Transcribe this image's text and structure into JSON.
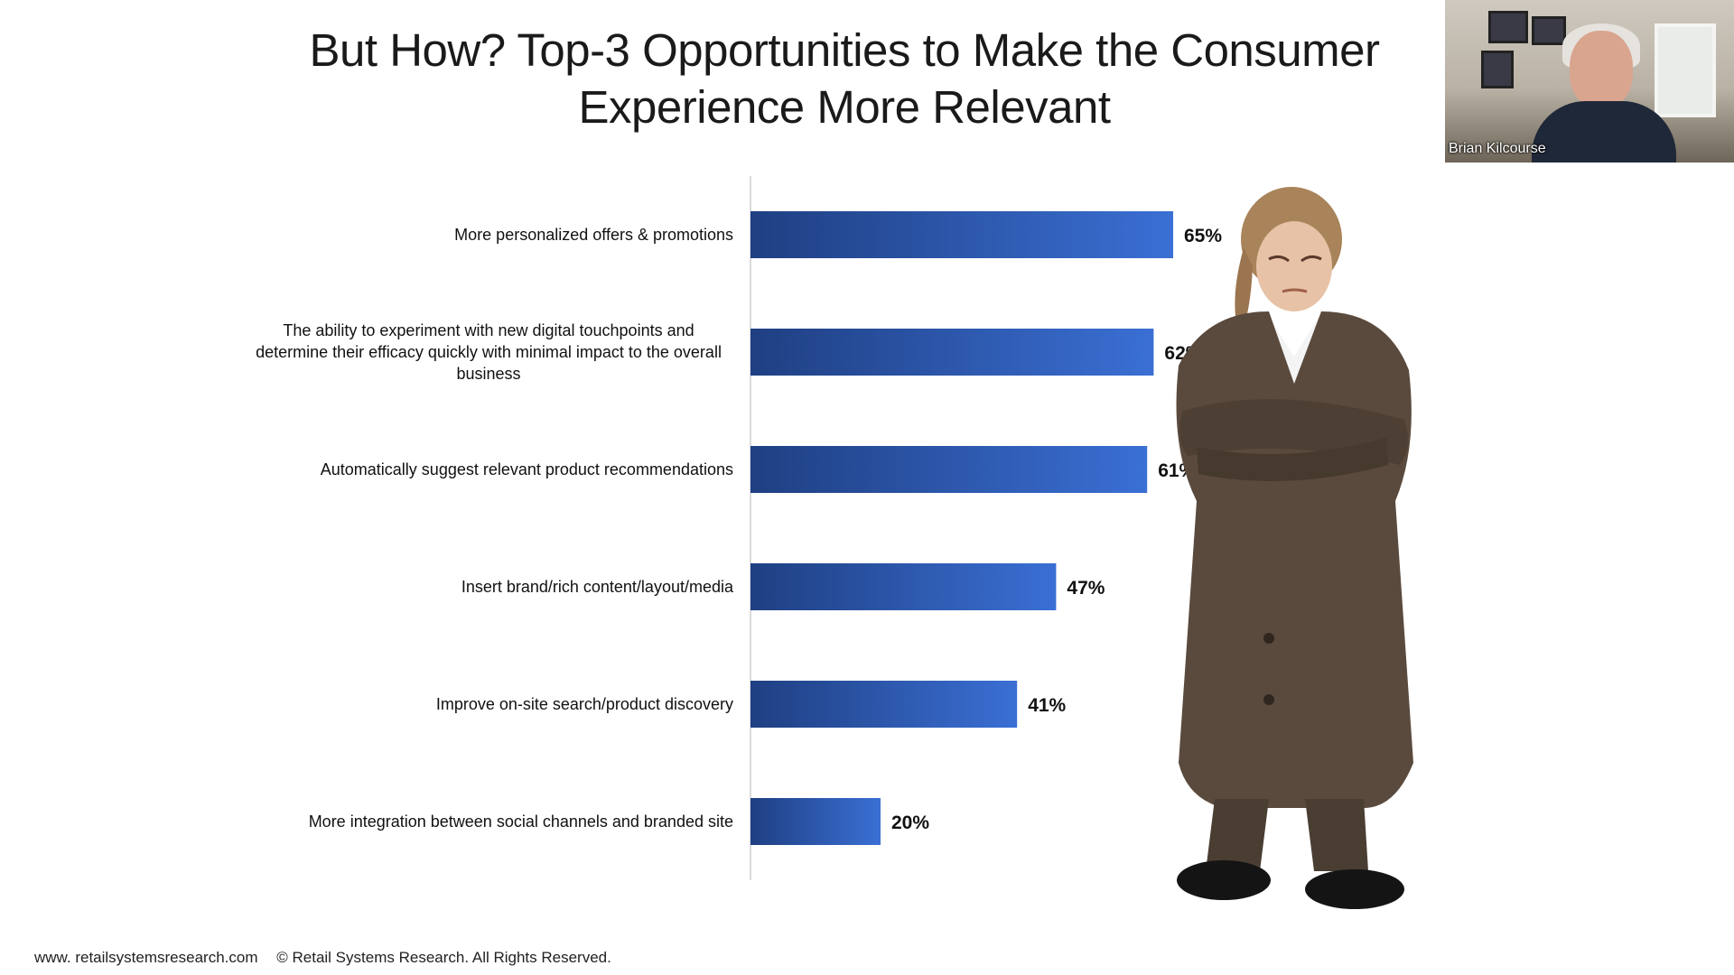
{
  "slide": {
    "title": "But How? Top-3 Opportunities to Make the Consumer Experience More Relevant"
  },
  "chart_data": {
    "type": "bar",
    "orientation": "horizontal",
    "title": "",
    "xlabel": "",
    "ylabel": "",
    "xlim": [
      0,
      100
    ],
    "grid": false,
    "value_format": "percent",
    "bar_color_start": "#1f3f82",
    "bar_color_end": "#3a6fd4",
    "categories": [
      "More personalized offers & promotions",
      "The ability to experiment with new digital touchpoints and determine their efficacy quickly with minimal impact to the overall business",
      "Automatically suggest relevant product recommendations",
      "Insert brand/rich  content/layout/media",
      "Improve on-site search/product discovery",
      "More integration between social channels and branded site"
    ],
    "category_lines": [
      [
        "More personalized offers & promotions"
      ],
      [
        "The ability to experiment with new digital touchpoints and",
        "determine their efficacy quickly with minimal impact to the overall",
        "business"
      ],
      [
        "Automatically suggest relevant product recommendations"
      ],
      [
        "Insert brand/rich  content/layout/media"
      ],
      [
        "Improve on-site search/product discovery"
      ],
      [
        "More integration between social channels and branded site"
      ]
    ],
    "values": [
      65,
      62,
      61,
      47,
      41,
      20
    ],
    "value_labels": [
      "65%",
      "62%",
      "61%",
      "47%",
      "41%",
      "20%"
    ]
  },
  "footer": {
    "website": "www. retailsystemsresearch.com",
    "copyright": "© Retail Systems Research. All Rights Reserved."
  },
  "webcam": {
    "participant_name": "Brian Kilcourse"
  }
}
